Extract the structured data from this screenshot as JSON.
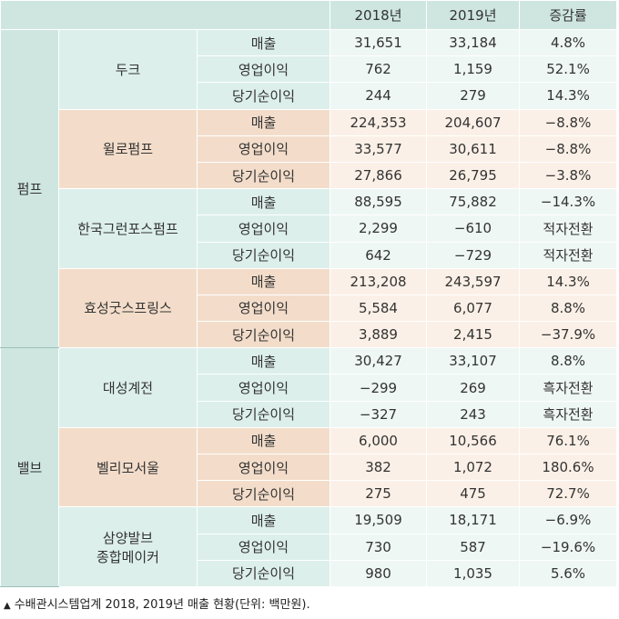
{
  "header": {
    "col_2018": "2018년",
    "col_2019": "2019년",
    "col_change": "증감률"
  },
  "groups": [
    {
      "label": "펌프"
    },
    {
      "label": "밸브"
    }
  ],
  "companies": [
    {
      "name": "두크",
      "rows": [
        {
          "metric": "매출",
          "v2018": "31,651",
          "v2019": "33,184",
          "change": "4.8%"
        },
        {
          "metric": "영업이익",
          "v2018": "762",
          "v2019": "1,159",
          "change": "52.1%"
        },
        {
          "metric": "당기순이익",
          "v2018": "244",
          "v2019": "279",
          "change": "14.3%"
        }
      ]
    },
    {
      "name": "윌로펌프",
      "rows": [
        {
          "metric": "매출",
          "v2018": "224,353",
          "v2019": "204,607",
          "change": "−8.8%"
        },
        {
          "metric": "영업이익",
          "v2018": "33,577",
          "v2019": "30,611",
          "change": "−8.8%"
        },
        {
          "metric": "당기순이익",
          "v2018": "27,866",
          "v2019": "26,795",
          "change": "−3.8%"
        }
      ]
    },
    {
      "name": "한국그런포스펌프",
      "rows": [
        {
          "metric": "매출",
          "v2018": "88,595",
          "v2019": "75,882",
          "change": "−14.3%"
        },
        {
          "metric": "영업이익",
          "v2018": "2,299",
          "v2019": "−610",
          "change": "적자전환"
        },
        {
          "metric": "당기순이익",
          "v2018": "642",
          "v2019": "−729",
          "change": "적자전환"
        }
      ]
    },
    {
      "name": "효성굿스프링스",
      "rows": [
        {
          "metric": "매출",
          "v2018": "213,208",
          "v2019": "243,597",
          "change": "14.3%"
        },
        {
          "metric": "영업이익",
          "v2018": "5,584",
          "v2019": "6,077",
          "change": "8.8%"
        },
        {
          "metric": "당기순이익",
          "v2018": "3,889",
          "v2019": "2,415",
          "change": "−37.9%"
        }
      ]
    },
    {
      "name": "대성계전",
      "rows": [
        {
          "metric": "매출",
          "v2018": "30,427",
          "v2019": "33,107",
          "change": "8.8%"
        },
        {
          "metric": "영업이익",
          "v2018": "−299",
          "v2019": "269",
          "change": "흑자전환"
        },
        {
          "metric": "당기순이익",
          "v2018": "−327",
          "v2019": "243",
          "change": "흑자전환"
        }
      ]
    },
    {
      "name": "벨리모서울",
      "rows": [
        {
          "metric": "매출",
          "v2018": "6,000",
          "v2019": "10,566",
          "change": "76.1%"
        },
        {
          "metric": "영업이익",
          "v2018": "382",
          "v2019": "1,072",
          "change": "180.6%"
        },
        {
          "metric": "당기순이익",
          "v2018": "275",
          "v2019": "475",
          "change": "72.7%"
        }
      ]
    },
    {
      "name_line1": "삼양발브",
      "name_line2": "종합메이커",
      "rows": [
        {
          "metric": "매출",
          "v2018": "19,509",
          "v2019": "18,171",
          "change": "−6.9%"
        },
        {
          "metric": "영업이익",
          "v2018": "730",
          "v2019": "587",
          "change": "−19.6%"
        },
        {
          "metric": "당기순이익",
          "v2018": "980",
          "v2019": "1,035",
          "change": "5.6%"
        }
      ]
    }
  ],
  "caption": "수배관시스템업계 2018, 2019년 매출 현황(단위: 백만원).",
  "caption_icon": "triangle-up-icon",
  "colors": {
    "teal": "#cfe6e0",
    "tan": "#f3ddca",
    "value_bg": "#eef7f4"
  }
}
